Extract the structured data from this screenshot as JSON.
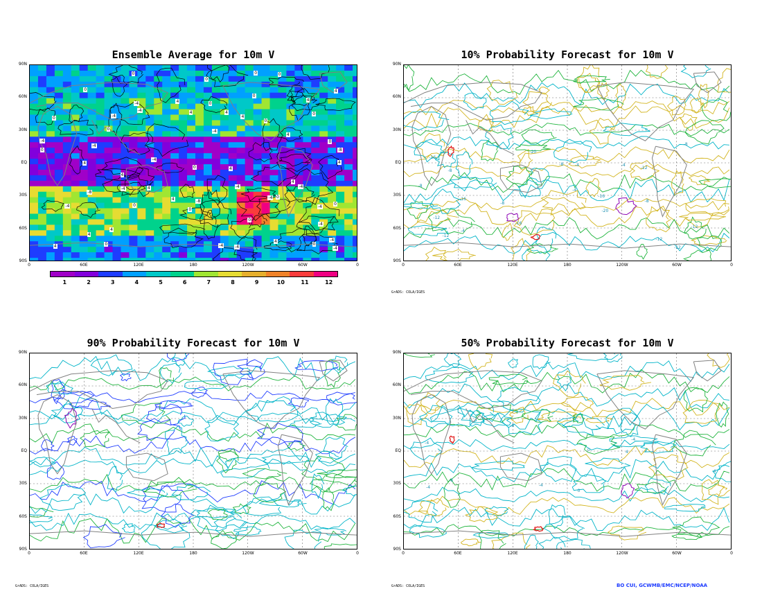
{
  "panels": {
    "ensemble": {
      "title": "Ensemble Average for 10m V"
    },
    "p10": {
      "title": "10% Probability Forecast for 10m V"
    },
    "p90": {
      "title": "90% Probability Forecast for 10m V"
    },
    "p50": {
      "title": "50% Probability Forecast for 10m V"
    }
  },
  "axes": {
    "lat_ticks": [
      "90N",
      "60N",
      "30N",
      "EQ",
      "30S",
      "60S",
      "90S"
    ],
    "lon_ticks": [
      "0",
      "60E",
      "120E",
      "180",
      "120W",
      "60W",
      "0"
    ]
  },
  "colorbar": {
    "labels": [
      "1",
      "2",
      "3",
      "4",
      "5",
      "6",
      "7",
      "8",
      "9",
      "10",
      "11",
      "12"
    ],
    "colors": [
      "#a000c8",
      "#8200dc",
      "#1e3cff",
      "#00a0ff",
      "#00c8c8",
      "#00d28c",
      "#a0e632",
      "#e6dc32",
      "#e6af2d",
      "#f08228",
      "#fa3c3c",
      "#f00082"
    ]
  },
  "contour_labels": {
    "ensemble": [
      "-4",
      "0",
      "4",
      "-8",
      "-4",
      "0",
      "4",
      "0",
      "-4",
      "4",
      "0",
      "-4",
      "4",
      "0",
      "-4",
      "0",
      "4",
      "-4",
      "0",
      "4"
    ],
    "p10": [
      "-12",
      "-16",
      "-20",
      "-16",
      "-12",
      "-8",
      "-4",
      "-8",
      "-12",
      "-8",
      "-4"
    ],
    "p50": [
      "-8",
      "-4",
      "4",
      "-4",
      "0"
    ]
  },
  "footnotes": {
    "grads_top_right": "GrADS: COLA/IGES",
    "grads_bottom_left": "GrADS: COLA/IGES",
    "grads_bottom_right": "GrADS: COLA/IGES"
  },
  "credit": "BO CUI, GCWMB/EMC/NCEP/NOAA",
  "colors": {
    "coast": "#808080",
    "contour_green": "#1eb43c",
    "contour_cyan": "#00b4c8",
    "contour_yellow": "#d2b41e",
    "contour_blue": "#1e3cff"
  }
}
